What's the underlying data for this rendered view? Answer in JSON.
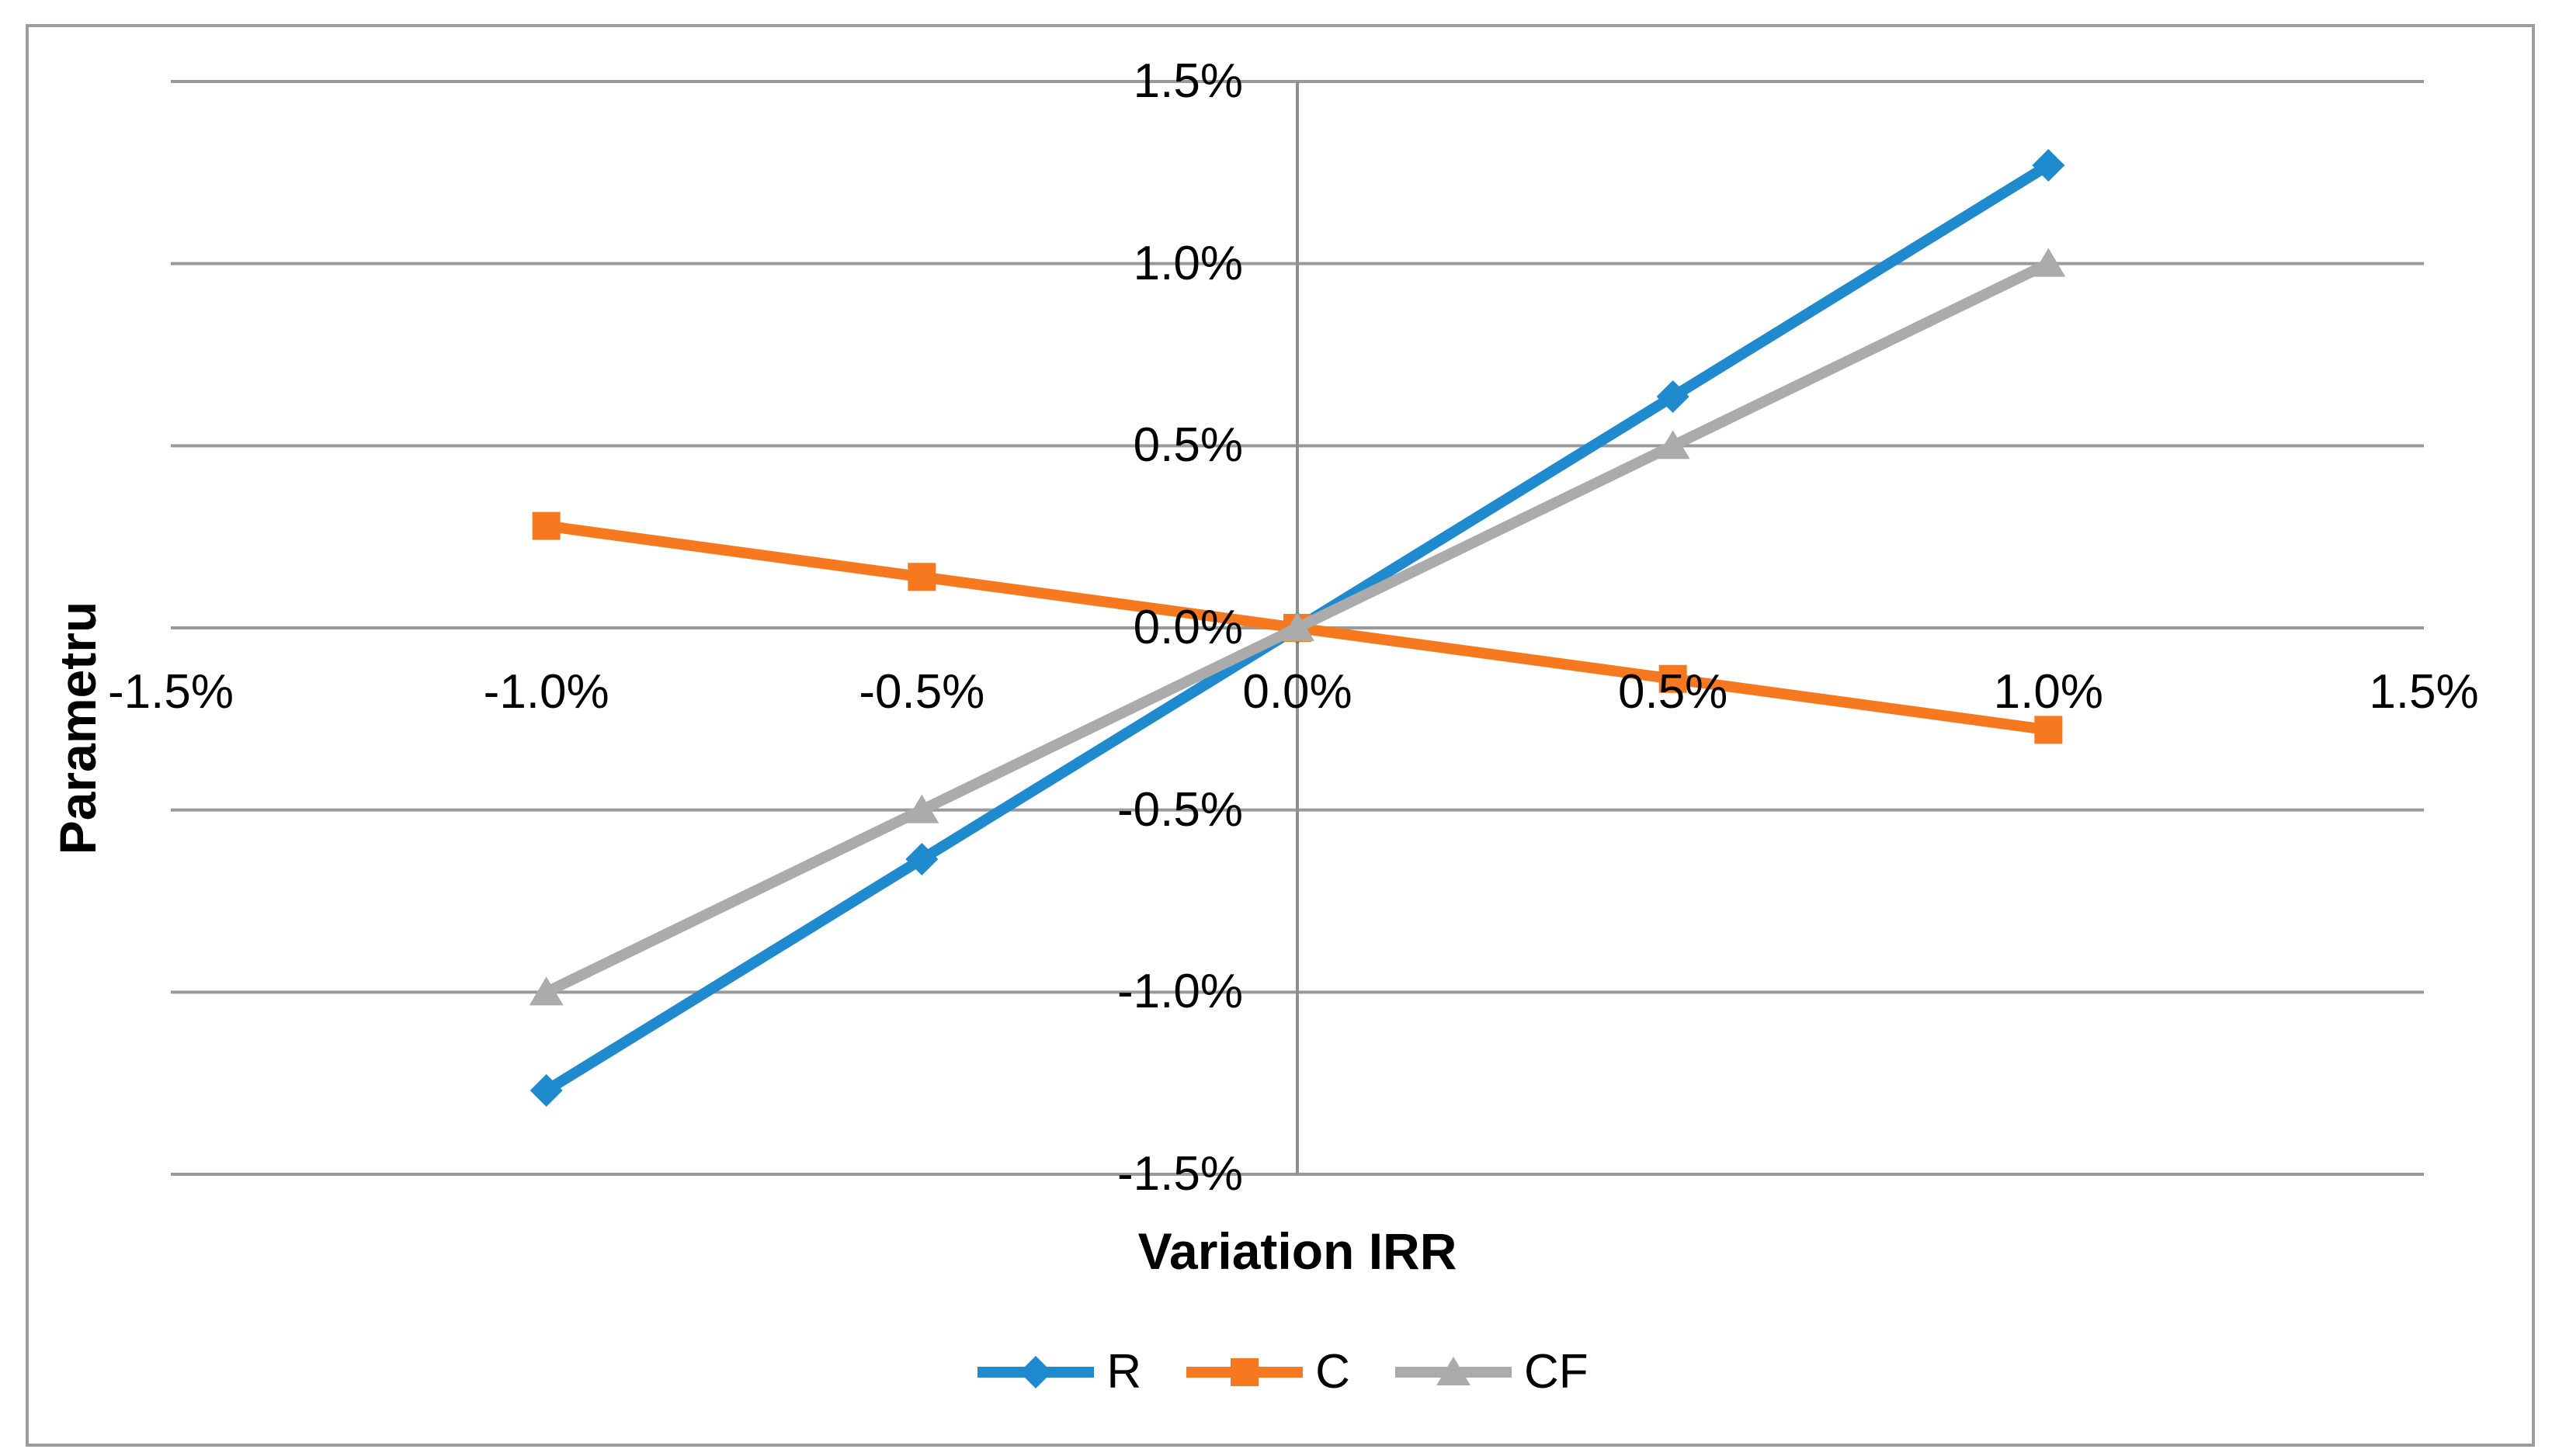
{
  "figure": {
    "background": "#FFFFFF",
    "border_color": "#9C9C9C"
  },
  "chart_data": {
    "type": "line",
    "title": "",
    "xlabel": "Variation IRR",
    "ylabel": "Parametru",
    "xlim": [
      -1.5,
      1.5
    ],
    "ylim": [
      -1.5,
      1.5
    ],
    "unit": "%",
    "grid": "horizontal-only",
    "legend_position": "bottom",
    "x": [
      -1.0,
      -0.5,
      0.0,
      0.5,
      1.0
    ],
    "series": [
      {
        "name": "R",
        "marker": "diamond",
        "color": "#1F8ACD",
        "values": [
          -1.27,
          -0.635,
          0.0,
          0.635,
          1.27
        ]
      },
      {
        "name": "C",
        "marker": "square",
        "color": "#F6791F",
        "values": [
          0.28,
          0.14,
          0.0,
          -0.14,
          -0.28
        ]
      },
      {
        "name": "CF",
        "marker": "triangle",
        "color": "#ABABAB",
        "values": [
          -1.0,
          -0.5,
          0.0,
          0.5,
          1.0
        ]
      }
    ],
    "x_ticks": [
      {
        "v": -1.5,
        "label": "-1.5%"
      },
      {
        "v": -1.0,
        "label": "-1.0%"
      },
      {
        "v": -0.5,
        "label": "-0.5%"
      },
      {
        "v": 0.0,
        "label": "0.0%"
      },
      {
        "v": 0.5,
        "label": "0.5%"
      },
      {
        "v": 1.0,
        "label": "1.0%"
      },
      {
        "v": 1.5,
        "label": "1.5%"
      }
    ],
    "y_ticks": [
      {
        "v": 1.5,
        "label": "1.5%"
      },
      {
        "v": 1.0,
        "label": "1.0%"
      },
      {
        "v": 0.5,
        "label": "0.5%"
      },
      {
        "v": 0.0,
        "label": "0.0%"
      },
      {
        "v": -0.5,
        "label": "-0.5%"
      },
      {
        "v": -1.0,
        "label": "-1.0%"
      },
      {
        "v": -1.5,
        "label": "-1.5%"
      }
    ],
    "gridline_color": "#9A9A9A",
    "axis_color": "#8F8F8F",
    "text_color": "#000000"
  }
}
